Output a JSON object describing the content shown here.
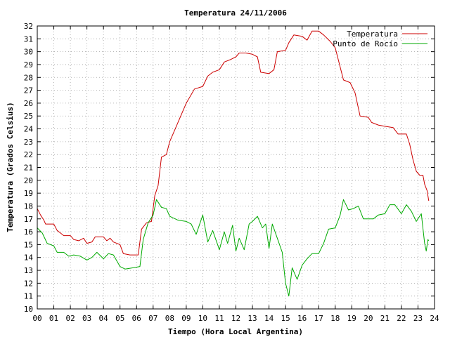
{
  "chart_data": {
    "type": "line",
    "title": "Temperatura 24/11/2006",
    "xlabel": "Tiempo (Hora Local Argentina)",
    "ylabel": "Temperatura (Grados Celsius)",
    "xlim": [
      0,
      24
    ],
    "ylim": [
      10,
      32
    ],
    "x_ticks": [
      "00",
      "01",
      "02",
      "03",
      "04",
      "05",
      "06",
      "07",
      "08",
      "09",
      "10",
      "11",
      "12",
      "13",
      "14",
      "15",
      "16",
      "17",
      "18",
      "19",
      "20",
      "21",
      "22",
      "23",
      "24"
    ],
    "y_ticks": [
      10,
      11,
      12,
      13,
      14,
      15,
      16,
      17,
      18,
      19,
      20,
      21,
      22,
      23,
      24,
      25,
      26,
      27,
      28,
      29,
      30,
      31,
      32
    ],
    "grid": true,
    "legend_position": "top-right",
    "series": [
      {
        "name": "Temperatura",
        "color": "#cc0000",
        "points": [
          [
            0,
            17.8
          ],
          [
            0.2,
            17.3
          ],
          [
            0.4,
            16.9
          ],
          [
            0.5,
            16.6
          ],
          [
            1.0,
            16.6
          ],
          [
            1.2,
            16.1
          ],
          [
            1.4,
            15.9
          ],
          [
            1.6,
            15.7
          ],
          [
            2.0,
            15.7
          ],
          [
            2.2,
            15.4
          ],
          [
            2.5,
            15.3
          ],
          [
            2.8,
            15.5
          ],
          [
            3.0,
            15.1
          ],
          [
            3.3,
            15.2
          ],
          [
            3.5,
            15.6
          ],
          [
            4.0,
            15.6
          ],
          [
            4.2,
            15.3
          ],
          [
            4.4,
            15.5
          ],
          [
            4.6,
            15.2
          ],
          [
            5.0,
            15.0
          ],
          [
            5.2,
            14.3
          ],
          [
            5.6,
            14.2
          ],
          [
            6.1,
            14.2
          ],
          [
            6.3,
            16.2
          ],
          [
            6.6,
            16.7
          ],
          [
            6.9,
            16.8
          ],
          [
            7.1,
            18.8
          ],
          [
            7.3,
            19.6
          ],
          [
            7.5,
            21.8
          ],
          [
            7.8,
            22.0
          ],
          [
            8.0,
            23.0
          ],
          [
            8.5,
            24.5
          ],
          [
            9.0,
            26.0
          ],
          [
            9.5,
            27.1
          ],
          [
            10.0,
            27.3
          ],
          [
            10.3,
            28.1
          ],
          [
            10.6,
            28.4
          ],
          [
            11.0,
            28.6
          ],
          [
            11.3,
            29.2
          ],
          [
            11.7,
            29.4
          ],
          [
            12.0,
            29.6
          ],
          [
            12.2,
            29.9
          ],
          [
            12.6,
            29.9
          ],
          [
            13.0,
            29.8
          ],
          [
            13.3,
            29.6
          ],
          [
            13.5,
            28.4
          ],
          [
            14.0,
            28.3
          ],
          [
            14.3,
            28.6
          ],
          [
            14.5,
            30.0
          ],
          [
            15.0,
            30.1
          ],
          [
            15.2,
            30.7
          ],
          [
            15.5,
            31.3
          ],
          [
            16.0,
            31.2
          ],
          [
            16.3,
            30.9
          ],
          [
            16.6,
            31.6
          ],
          [
            17.0,
            31.6
          ],
          [
            17.3,
            31.3
          ],
          [
            17.7,
            30.8
          ],
          [
            18.0,
            30.3
          ],
          [
            18.2,
            29.3
          ],
          [
            18.5,
            27.8
          ],
          [
            18.9,
            27.6
          ],
          [
            19.2,
            26.8
          ],
          [
            19.5,
            25.0
          ],
          [
            20.0,
            24.9
          ],
          [
            20.2,
            24.5
          ],
          [
            20.6,
            24.3
          ],
          [
            21.0,
            24.2
          ],
          [
            21.5,
            24.1
          ],
          [
            21.8,
            23.6
          ],
          [
            22.3,
            23.6
          ],
          [
            22.5,
            22.8
          ],
          [
            22.7,
            21.6
          ],
          [
            22.9,
            20.7
          ],
          [
            23.1,
            20.4
          ],
          [
            23.3,
            20.4
          ],
          [
            23.4,
            19.7
          ],
          [
            23.55,
            19.2
          ],
          [
            23.65,
            18.4
          ]
        ]
      },
      {
        "name": "Punto de Rocío",
        "color": "#00aa00",
        "points": [
          [
            0,
            16.3
          ],
          [
            0.3,
            15.9
          ],
          [
            0.6,
            15.1
          ],
          [
            1.0,
            14.9
          ],
          [
            1.2,
            14.4
          ],
          [
            1.6,
            14.4
          ],
          [
            1.9,
            14.1
          ],
          [
            2.2,
            14.2
          ],
          [
            2.6,
            14.1
          ],
          [
            3.0,
            13.8
          ],
          [
            3.3,
            14.0
          ],
          [
            3.6,
            14.4
          ],
          [
            4.0,
            13.9
          ],
          [
            4.3,
            14.3
          ],
          [
            4.6,
            14.2
          ],
          [
            5.0,
            13.3
          ],
          [
            5.3,
            13.1
          ],
          [
            5.8,
            13.2
          ],
          [
            6.2,
            13.3
          ],
          [
            6.4,
            15.4
          ],
          [
            6.7,
            16.7
          ],
          [
            7.0,
            17.3
          ],
          [
            7.2,
            18.5
          ],
          [
            7.5,
            17.9
          ],
          [
            7.8,
            17.8
          ],
          [
            8.0,
            17.2
          ],
          [
            8.5,
            16.9
          ],
          [
            9.0,
            16.8
          ],
          [
            9.3,
            16.6
          ],
          [
            9.6,
            15.8
          ],
          [
            10.0,
            17.3
          ],
          [
            10.3,
            15.2
          ],
          [
            10.6,
            16.1
          ],
          [
            11.0,
            14.6
          ],
          [
            11.3,
            16.0
          ],
          [
            11.5,
            15.1
          ],
          [
            11.8,
            16.5
          ],
          [
            12.0,
            14.5
          ],
          [
            12.2,
            15.5
          ],
          [
            12.5,
            14.6
          ],
          [
            12.8,
            16.6
          ],
          [
            13.0,
            16.8
          ],
          [
            13.3,
            17.2
          ],
          [
            13.6,
            16.3
          ],
          [
            13.8,
            16.6
          ],
          [
            14.0,
            14.7
          ],
          [
            14.2,
            16.6
          ],
          [
            14.5,
            15.5
          ],
          [
            14.8,
            14.4
          ],
          [
            15.0,
            12.0
          ],
          [
            15.2,
            11.0
          ],
          [
            15.4,
            13.2
          ],
          [
            15.7,
            12.3
          ],
          [
            16.0,
            13.4
          ],
          [
            16.3,
            13.9
          ],
          [
            16.6,
            14.3
          ],
          [
            17.0,
            14.3
          ],
          [
            17.3,
            15.1
          ],
          [
            17.6,
            16.2
          ],
          [
            18.0,
            16.3
          ],
          [
            18.3,
            17.3
          ],
          [
            18.5,
            18.5
          ],
          [
            18.8,
            17.7
          ],
          [
            19.1,
            17.8
          ],
          [
            19.4,
            18.0
          ],
          [
            19.7,
            17.0
          ],
          [
            20.0,
            17.0
          ],
          [
            20.3,
            17.0
          ],
          [
            20.6,
            17.3
          ],
          [
            21.0,
            17.4
          ],
          [
            21.3,
            18.1
          ],
          [
            21.6,
            18.1
          ],
          [
            22.0,
            17.4
          ],
          [
            22.3,
            18.1
          ],
          [
            22.6,
            17.6
          ],
          [
            22.9,
            16.8
          ],
          [
            23.2,
            17.4
          ],
          [
            23.4,
            15.1
          ],
          [
            23.5,
            14.5
          ],
          [
            23.6,
            15.4
          ],
          [
            23.65,
            15.3
          ]
        ]
      }
    ]
  }
}
